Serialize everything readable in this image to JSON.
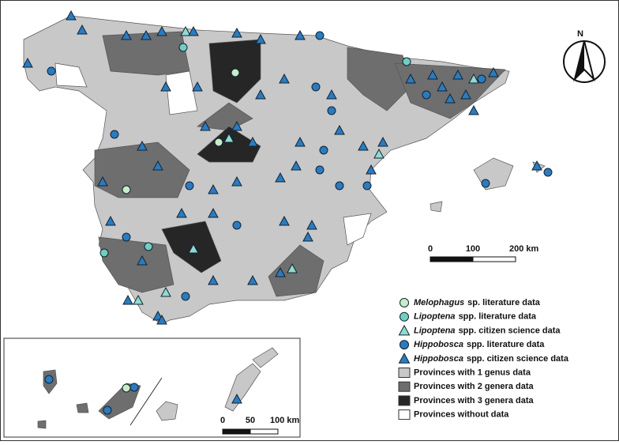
{
  "north_arrow": "N",
  "legend": [
    {
      "genus": "Melophagus",
      "label": "sp. literature data"
    },
    {
      "genus": "Lipoptena",
      "label": "spp. literature data"
    },
    {
      "genus": "Lipoptena",
      "label": "spp. citizen science data"
    },
    {
      "genus": "Hippobosca",
      "label": "spp. literature data"
    },
    {
      "genus": "Hippobosca",
      "label": "spp. citizen science data"
    },
    {
      "label": "Provinces with 1 genus data"
    },
    {
      "label": "Provinces with 2 genera data"
    },
    {
      "label": "Provinces with 3 genera data"
    },
    {
      "label": "Provinces without data"
    }
  ],
  "scale_bars": [
    {
      "labels": [
        "0",
        "100",
        "200 km"
      ]
    },
    {
      "labels": [
        "0",
        "50",
        "100 km"
      ]
    }
  ]
}
